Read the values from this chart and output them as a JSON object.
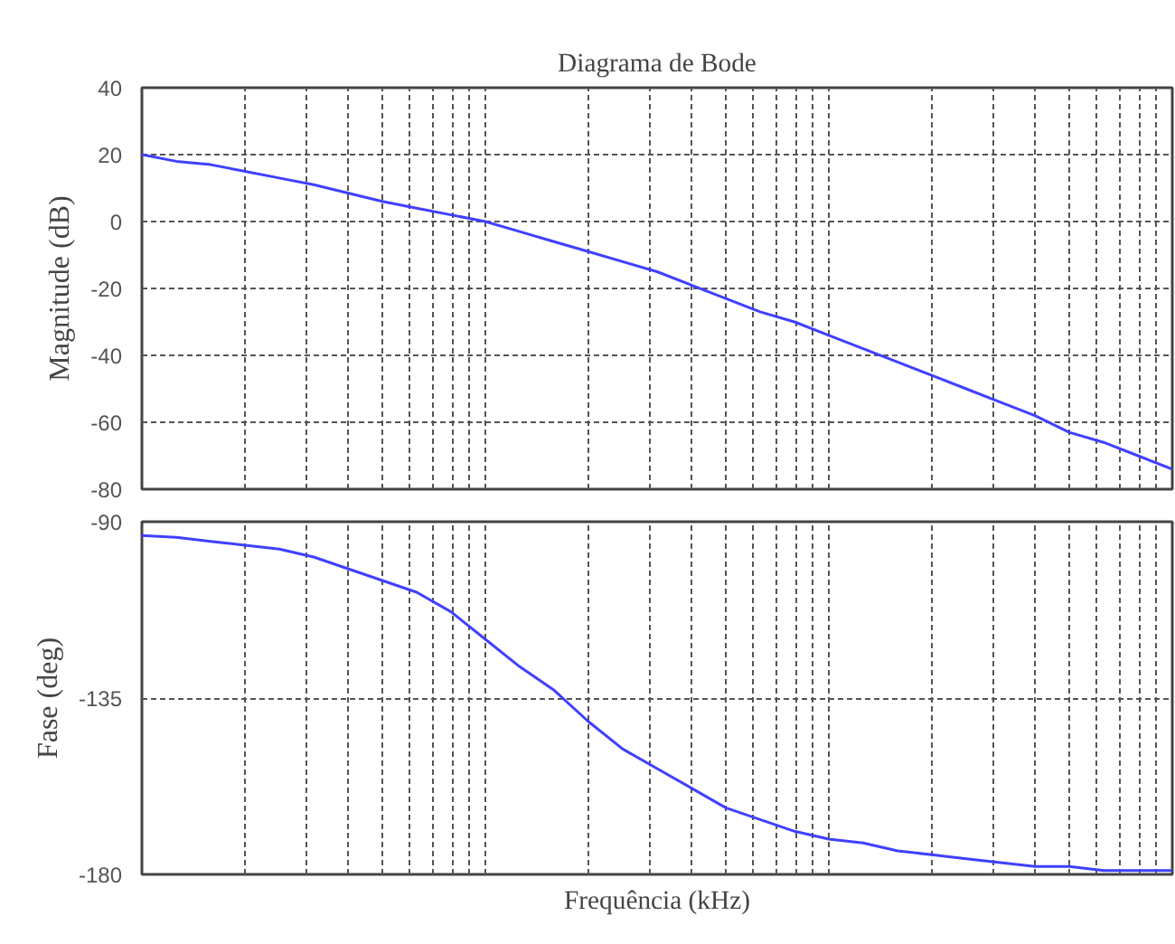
{
  "chart_data": [
    {
      "type": "line",
      "title": "Diagrama de Bode",
      "ylabel": "Magnitude (dB)",
      "categories": [
        null,
        null,
        null,
        null,
        null,
        null,
        null,
        null,
        null,
        null,
        null,
        null,
        null,
        null,
        null,
        null,
        null,
        null,
        null,
        null,
        null,
        null,
        null,
        null,
        null,
        null,
        null,
        null,
        null,
        null,
        null
      ],
      "series": [
        {
          "color": "#4040ff",
          "values": [
            20,
            18,
            17,
            15,
            13,
            11,
            8.5,
            6,
            4,
            2,
            0,
            -3,
            -6,
            -9,
            -12,
            -15,
            -19,
            -23,
            -27,
            -30,
            -34,
            -38,
            -42,
            -46,
            -50,
            -54,
            -58,
            -63,
            -66,
            -70,
            -74
          ]
        }
      ],
      "ylim": [
        -80,
        40
      ],
      "yticks": [
        -80,
        -60,
        -40,
        -20,
        0,
        20,
        40
      ],
      "grid": true,
      "tick_labels": "y",
      "marker": "none",
      "line_style": "solid"
    },
    {
      "type": "line",
      "xlabel": "Frequência (kHz)",
      "ylabel": "Fase (deg)",
      "categories": [
        null,
        null,
        null,
        null,
        null,
        null,
        null,
        null,
        null,
        null,
        null,
        null,
        null,
        null,
        null,
        null,
        null,
        null,
        null,
        null,
        null,
        null,
        null,
        null,
        null,
        null,
        null,
        null,
        null,
        null,
        null
      ],
      "series": [
        {
          "color": "#4040ff",
          "values": [
            -93.5,
            -94,
            -95,
            -96,
            -97,
            -99,
            -102,
            -105,
            -108,
            -113,
            -120,
            -127,
            -133,
            -141,
            -148,
            -153,
            -158,
            -163,
            -166,
            -169,
            -171,
            -172,
            -174,
            -175,
            -176,
            -177,
            -178,
            -178,
            -179,
            -179,
            -179
          ]
        }
      ],
      "ylim": [
        -180,
        -90
      ],
      "yticks": [
        -180,
        -135,
        -90
      ],
      "grid": true,
      "tick_labels": "y",
      "marker": "none",
      "line_style": "solid"
    }
  ]
}
